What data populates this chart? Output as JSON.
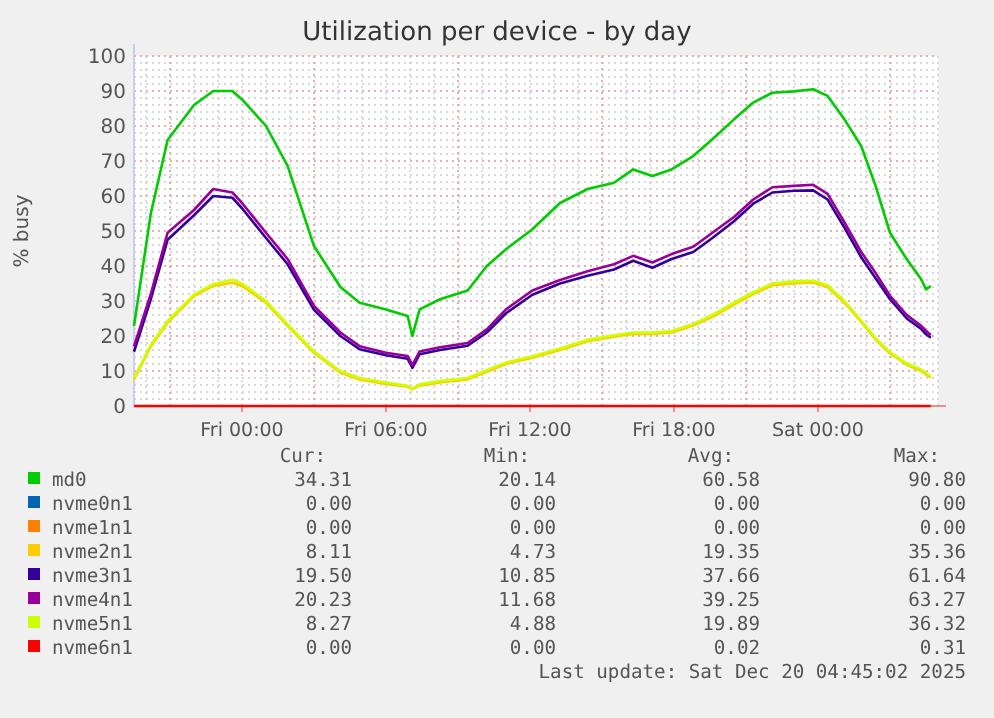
{
  "chart_data": {
    "type": "line",
    "title": "Utilization per device - by day",
    "ylabel": "% busy",
    "x": [
      "2025-12-18T19:30",
      "2025-12-18T20:12",
      "2025-12-18T20:54",
      "2025-12-18T22:00",
      "2025-12-18T22:48",
      "2025-12-18T23:36",
      "2025-12-19T00:00",
      "2025-12-19T01:00",
      "2025-12-19T01:54",
      "2025-12-19T03:00",
      "2025-12-19T04:06",
      "2025-12-19T04:54",
      "2025-12-19T06:00",
      "2025-12-19T06:54",
      "2025-12-19T07:06",
      "2025-12-19T07:24",
      "2025-12-19T08:15",
      "2025-12-19T09:24",
      "2025-12-19T10:12",
      "2025-12-19T11:00",
      "2025-12-19T12:06",
      "2025-12-19T13:15",
      "2025-12-19T14:24",
      "2025-12-19T15:30",
      "2025-12-19T16:18",
      "2025-12-19T17:06",
      "2025-12-19T17:54",
      "2025-12-19T18:48",
      "2025-12-19T19:36",
      "2025-12-19T20:30",
      "2025-12-19T21:18",
      "2025-12-19T22:06",
      "2025-12-19T23:00",
      "2025-12-19T23:48",
      "2025-12-20T00:24",
      "2025-12-20T01:06",
      "2025-12-20T01:48",
      "2025-12-20T02:24",
      "2025-12-20T03:00",
      "2025-12-20T03:42",
      "2025-12-20T04:18",
      "2025-12-20T04:30",
      "2025-12-20T04:42"
    ],
    "series": [
      {
        "name": "md0",
        "color": "#00cc00",
        "values": [
          22.9,
          55,
          76,
          86,
          90,
          90,
          87.6,
          80,
          68.6,
          45.7,
          34,
          29.5,
          27.6,
          25.7,
          20,
          27.6,
          30.5,
          33,
          40,
          44.8,
          50.5,
          58,
          62,
          63.8,
          67.6,
          65.7,
          67.6,
          71.4,
          76.2,
          81.9,
          86.7,
          89.5,
          89.9,
          90.5,
          88.6,
          81.9,
          74.3,
          62.9,
          49.5,
          41.9,
          36.2,
          33.3,
          34.3
        ]
      },
      {
        "name": "nvme0n1",
        "color": "#0066b3",
        "values": [
          null,
          null,
          null,
          null,
          null,
          null,
          null,
          null,
          null,
          null,
          null,
          null,
          null,
          null,
          null,
          null,
          null,
          null,
          null,
          null,
          null,
          null,
          null,
          null,
          null,
          null,
          null,
          null,
          null,
          null,
          null,
          null,
          null,
          null,
          null,
          null,
          null,
          null,
          null,
          null,
          null,
          null,
          null
        ]
      },
      {
        "name": "nvme1n1",
        "color": "#ff8000",
        "values": [
          null,
          null,
          null,
          null,
          null,
          null,
          null,
          null,
          null,
          null,
          null,
          null,
          null,
          null,
          null,
          null,
          null,
          null,
          null,
          null,
          null,
          null,
          null,
          null,
          null,
          null,
          null,
          null,
          null,
          null,
          null,
          null,
          null,
          null,
          null,
          null,
          null,
          null,
          null,
          null,
          null,
          null,
          null
        ]
      },
      {
        "name": "nvme2n1",
        "color": "#ffcc00",
        "values": [
          7.6,
          17,
          23.8,
          31.4,
          34.3,
          35.2,
          34.3,
          29.5,
          22.9,
          15.2,
          9.5,
          7.6,
          6.3,
          5.5,
          4.8,
          5.8,
          6.7,
          7.6,
          9.8,
          12,
          13.8,
          16,
          18.5,
          19.8,
          20.6,
          20.6,
          21,
          23,
          25.5,
          29,
          32,
          34.5,
          35,
          35.3,
          34,
          29.5,
          24,
          19,
          15,
          11.8,
          10,
          9,
          8.1
        ]
      },
      {
        "name": "nvme3n1",
        "color": "#330099",
        "values": [
          15.5,
          30.5,
          47.5,
          54.5,
          60,
          59.5,
          56.5,
          48,
          40.5,
          27.5,
          20,
          16.2,
          14.5,
          13.5,
          10.9,
          14.8,
          16,
          17.2,
          21,
          26.5,
          31.8,
          35,
          37.2,
          39,
          41.5,
          39.5,
          42,
          44,
          48,
          52.8,
          57.8,
          61,
          61.5,
          61.6,
          59,
          51,
          42.5,
          36.5,
          30.5,
          25,
          22,
          20.5,
          19.5
        ]
      },
      {
        "name": "nvme4n1",
        "color": "#990099",
        "values": [
          17,
          32,
          49.5,
          56,
          62,
          61,
          58,
          49.5,
          42,
          28.6,
          21,
          17.1,
          15.2,
          14.3,
          11.7,
          15.6,
          16.8,
          18,
          21.9,
          27.6,
          33,
          36,
          38.5,
          40.5,
          42.9,
          41,
          43.4,
          45.5,
          49.5,
          54,
          59,
          62.5,
          62.9,
          63.2,
          60.6,
          52.5,
          44,
          38,
          31.5,
          26,
          22.9,
          21.5,
          20.2
        ]
      },
      {
        "name": "nvme5n1",
        "color": "#ccff00",
        "values": [
          8,
          17.4,
          24.3,
          31.8,
          34.8,
          36.1,
          35,
          30,
          23.3,
          15.6,
          9.9,
          8,
          6.7,
          5.8,
          4.9,
          6.2,
          7.1,
          8,
          10.2,
          12.4,
          14.2,
          16.4,
          18.9,
          20.2,
          21,
          21,
          21.4,
          23.4,
          26,
          29.5,
          32.5,
          35,
          35.6,
          35.8,
          34.5,
          30,
          24.4,
          19.4,
          15.4,
          12.2,
          10.4,
          9.4,
          8.3
        ]
      },
      {
        "name": "nvme6n1",
        "color": "#ff0000",
        "values": [
          0,
          0,
          0,
          0,
          0,
          0,
          0,
          0,
          0,
          0,
          0,
          0,
          0,
          0,
          0,
          0,
          0,
          0,
          0,
          0,
          0,
          0,
          0,
          0,
          0,
          0,
          0,
          0,
          0,
          0,
          0,
          0,
          0,
          0,
          0,
          0,
          0,
          0,
          0,
          0,
          0,
          0,
          0
        ]
      }
    ],
    "xlim": [
      "2025-12-18T19:30",
      "2025-12-20T05:00"
    ],
    "xticks": [
      {
        "value": "2025-12-19T00:00",
        "label": "Fri 00:00"
      },
      {
        "value": "2025-12-19T06:00",
        "label": "Fri 06:00"
      },
      {
        "value": "2025-12-19T12:00",
        "label": "Fri 12:00"
      },
      {
        "value": "2025-12-19T18:00",
        "label": "Fri 18:00"
      },
      {
        "value": "2025-12-20T00:00",
        "label": "Sat 00:00"
      }
    ],
    "ylim": [
      0,
      100
    ],
    "yticks": [
      0,
      10,
      20,
      30,
      40,
      50,
      60,
      70,
      80,
      90,
      100
    ],
    "grid": true,
    "legend": "bottom",
    "marker": "none",
    "line_style": "solid",
    "annotations": [
      "Cur:",
      "Min:",
      "Avg:",
      "Max:",
      "34.31",
      "20.14",
      "60.58",
      "90.80",
      "0.00",
      "0.00",
      "0.00",
      "0.00",
      "0.00",
      "0.00",
      "0.00",
      "0.00",
      "8.11",
      "4.73",
      "19.35",
      "35.36",
      "19.50",
      "10.85",
      "37.66",
      "61.64",
      "20.23",
      "11.68",
      "39.25",
      "63.27",
      "8.27",
      "4.88",
      "19.89",
      "36.32",
      "0.00",
      "0.00",
      "0.02",
      "0.31",
      "Last update: Sat Dec 20 04:45:02 2025"
    ]
  }
}
